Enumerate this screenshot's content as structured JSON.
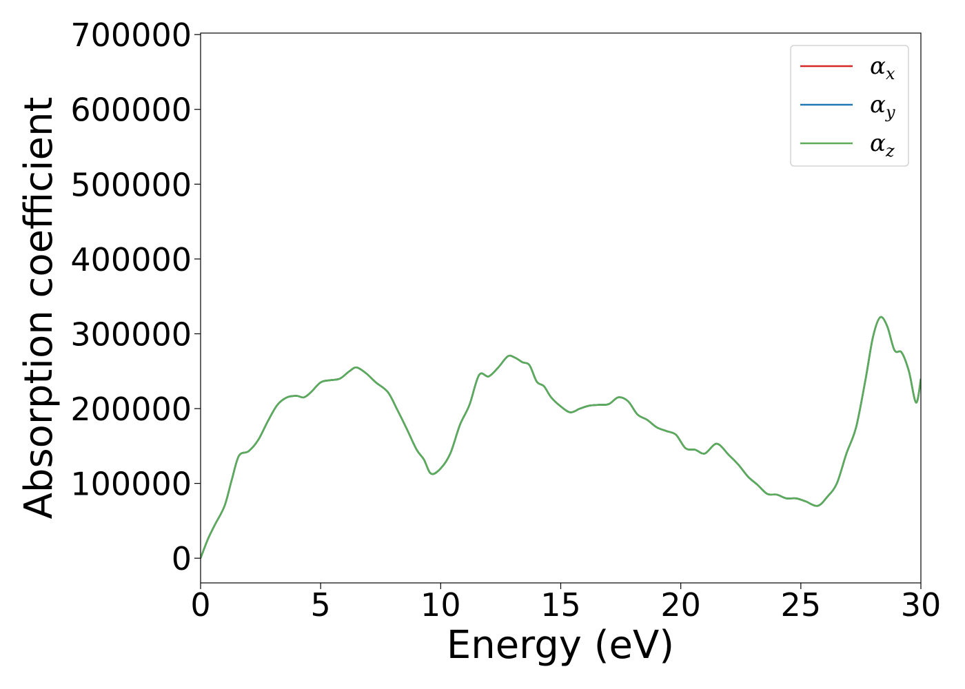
{
  "chart_data": {
    "type": "line",
    "title": "",
    "xlabel": "Energy (eV)",
    "ylabel": "Absorption coefficient",
    "xlim": [
      0,
      30
    ],
    "ylim": [
      -33000,
      702000
    ],
    "xticks": [
      0,
      5,
      10,
      15,
      20,
      25,
      30
    ],
    "yticks": [
      0,
      100000,
      200000,
      300000,
      400000,
      500000,
      600000,
      700000
    ],
    "xtick_labels": [
      "0",
      "5",
      "10",
      "15",
      "20",
      "25",
      "30"
    ],
    "ytick_labels": [
      "0",
      "100000",
      "200000",
      "300000",
      "400000",
      "500000",
      "600000",
      "700000"
    ],
    "grid": false,
    "legend_position": "top-right",
    "legend": [
      {
        "symbol": "α",
        "subscript": "x",
        "color": "#d62728"
      },
      {
        "symbol": "α",
        "subscript": "y",
        "color": "#1f77b4"
      },
      {
        "symbol": "α",
        "subscript": "z",
        "color": "#5aac5a"
      }
    ],
    "x": [
      0,
      0.3,
      0.6,
      1.0,
      1.3,
      1.6,
      2.0,
      2.4,
      2.8,
      3.2,
      3.6,
      4.0,
      4.3,
      4.6,
      5.0,
      5.4,
      5.8,
      6.2,
      6.5,
      6.9,
      7.3,
      7.8,
      8.2,
      8.6,
      9.0,
      9.3,
      9.6,
      10.0,
      10.4,
      10.8,
      11.2,
      11.6,
      12.0,
      12.4,
      12.8,
      13.1,
      13.4,
      13.7,
      14.0,
      14.3,
      14.6,
      15.0,
      15.4,
      15.8,
      16.2,
      16.6,
      17.0,
      17.4,
      17.8,
      18.2,
      18.6,
      19.0,
      19.4,
      19.8,
      20.2,
      20.6,
      21.0,
      21.5,
      22.0,
      22.4,
      22.8,
      23.2,
      23.6,
      24.0,
      24.4,
      24.8,
      25.2,
      25.7,
      26.1,
      26.5,
      26.9,
      27.3,
      27.7,
      28.0,
      28.3,
      28.6,
      28.9,
      29.2,
      29.5,
      29.8,
      30.0
    ],
    "series": [
      {
        "color": "#d62728",
        "values": [
          0,
          25000,
          45000,
          70000,
          105000,
          137000,
          143000,
          158000,
          183000,
          205000,
          215000,
          217000,
          215000,
          222000,
          235000,
          238000,
          240000,
          250000,
          255000,
          247000,
          235000,
          222000,
          198000,
          172000,
          145000,
          132000,
          113000,
          120000,
          140000,
          178000,
          205000,
          245000,
          243000,
          255000,
          270000,
          268000,
          262000,
          258000,
          236000,
          230000,
          215000,
          203000,
          195000,
          200000,
          204000,
          205000,
          206000,
          215000,
          210000,
          192000,
          185000,
          175000,
          170000,
          165000,
          147000,
          145000,
          140000,
          153000,
          138000,
          125000,
          109000,
          98000,
          86000,
          85000,
          80000,
          80000,
          76000,
          70000,
          82000,
          100000,
          140000,
          175000,
          240000,
          295000,
          322000,
          310000,
          278000,
          275000,
          250000,
          208000,
          240000
        ]
      },
      {
        "color": "#1f77b4",
        "values": [
          0,
          25000,
          45000,
          70000,
          105000,
          137000,
          143000,
          158000,
          183000,
          205000,
          215000,
          217000,
          215000,
          222000,
          235000,
          238000,
          240000,
          250000,
          255000,
          247000,
          235000,
          222000,
          198000,
          172000,
          145000,
          132000,
          113000,
          120000,
          140000,
          178000,
          205000,
          245000,
          243000,
          255000,
          270000,
          268000,
          262000,
          258000,
          236000,
          230000,
          215000,
          203000,
          195000,
          200000,
          204000,
          205000,
          206000,
          215000,
          210000,
          192000,
          185000,
          175000,
          170000,
          165000,
          147000,
          145000,
          140000,
          153000,
          138000,
          125000,
          109000,
          98000,
          86000,
          85000,
          80000,
          80000,
          76000,
          70000,
          82000,
          100000,
          140000,
          175000,
          240000,
          295000,
          322000,
          310000,
          278000,
          275000,
          250000,
          208000,
          240000
        ]
      },
      {
        "color": "#5aac5a",
        "values": [
          0,
          25000,
          45000,
          70000,
          105000,
          137000,
          143000,
          158000,
          183000,
          205000,
          215000,
          217000,
          215000,
          222000,
          235000,
          238000,
          240000,
          250000,
          255000,
          247000,
          235000,
          222000,
          198000,
          172000,
          145000,
          132000,
          113000,
          120000,
          140000,
          178000,
          205000,
          245000,
          243000,
          255000,
          270000,
          268000,
          262000,
          258000,
          236000,
          230000,
          215000,
          203000,
          195000,
          200000,
          204000,
          205000,
          206000,
          215000,
          210000,
          192000,
          185000,
          175000,
          170000,
          165000,
          147000,
          145000,
          140000,
          153000,
          138000,
          125000,
          109000,
          98000,
          86000,
          85000,
          80000,
          80000,
          76000,
          70000,
          82000,
          100000,
          140000,
          175000,
          240000,
          295000,
          322000,
          310000,
          278000,
          275000,
          250000,
          208000,
          240000
        ]
      }
    ]
  }
}
